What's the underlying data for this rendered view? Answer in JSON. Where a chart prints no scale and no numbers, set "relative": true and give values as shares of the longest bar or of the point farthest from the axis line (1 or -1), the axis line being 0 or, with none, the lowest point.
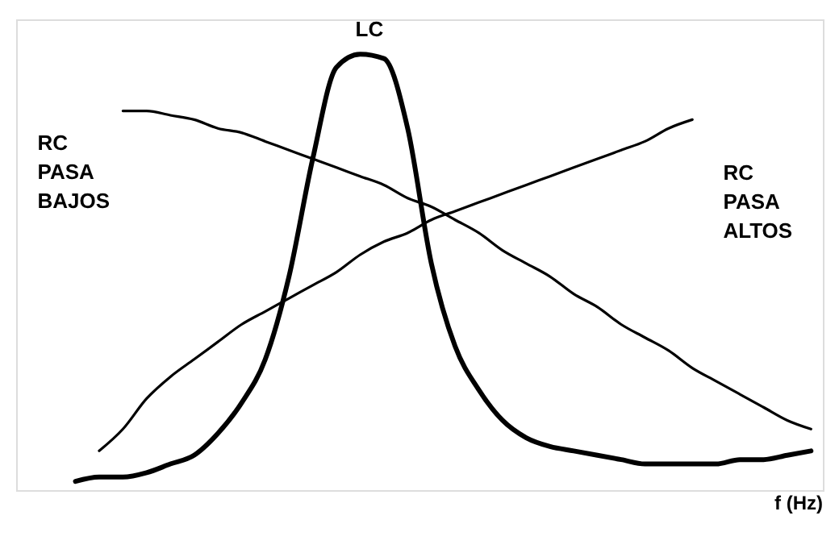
{
  "chart_data": {
    "type": "line",
    "relative": true,
    "xlabel": "f (Hz)",
    "grid": false,
    "tick_labels": false,
    "categories": [
      null,
      null,
      null,
      null,
      null,
      null,
      null,
      null,
      null,
      null,
      null,
      null,
      null,
      null,
      null,
      null,
      null,
      null,
      null,
      null,
      null,
      null,
      null,
      null,
      null,
      null,
      null,
      null,
      null,
      null,
      null,
      null
    ],
    "series": [
      {
        "name": "LC",
        "color": "#000000",
        "values": [
          0.02,
          0.03,
          0.03,
          0.04,
          0.06,
          0.08,
          0.13,
          0.2,
          0.3,
          0.49,
          0.76,
          0.97,
          1.0,
          0.99,
          0.83,
          0.52,
          0.33,
          0.23,
          0.16,
          0.12,
          0.1,
          0.09,
          0.08,
          0.07,
          0.06,
          0.06,
          0.06,
          0.06,
          0.07,
          0.07,
          0.08,
          0.09
        ]
      },
      {
        "name": "RC\nPASA\nBAJOS",
        "color": "#000000",
        "values": [
          null,
          null,
          0.87,
          0.87,
          0.86,
          0.85,
          0.83,
          0.82,
          0.8,
          0.78,
          0.76,
          0.74,
          0.72,
          0.7,
          0.67,
          0.65,
          0.62,
          0.59,
          0.55,
          0.52,
          0.49,
          0.45,
          0.42,
          0.38,
          0.35,
          0.32,
          0.28,
          0.25,
          0.22,
          0.19,
          0.16,
          0.14
        ]
      },
      {
        "name": "RC\nPASA\nALTOS",
        "color": "#000000",
        "values": [
          null,
          0.09,
          0.14,
          0.21,
          0.26,
          0.3,
          0.34,
          0.38,
          0.41,
          0.44,
          0.47,
          0.5,
          0.54,
          0.57,
          0.59,
          0.62,
          0.64,
          0.66,
          0.68,
          0.7,
          0.72,
          0.74,
          0.76,
          0.78,
          0.8,
          0.83,
          0.85,
          null,
          null,
          null,
          null,
          null
        ]
      }
    ]
  }
}
